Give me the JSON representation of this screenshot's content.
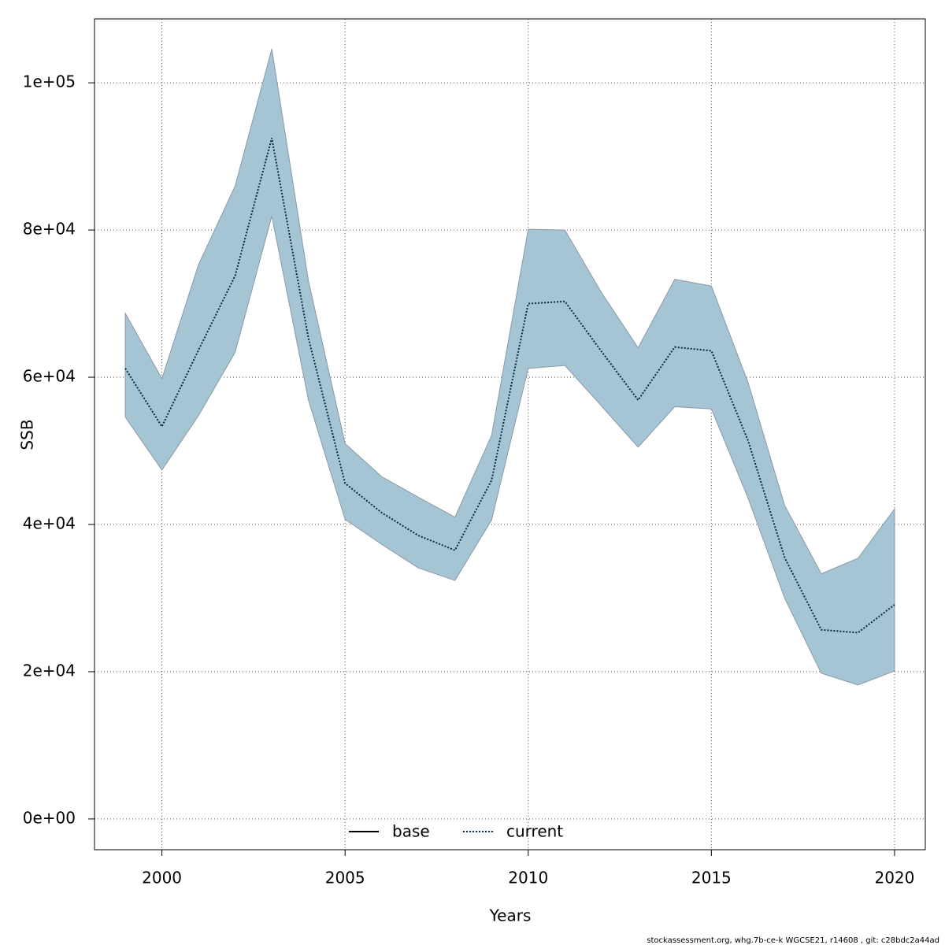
{
  "chart_data": {
    "type": "line",
    "xlabel": "Years",
    "ylabel": "SSB",
    "footnote": "stockassessment.org, whg.7b-ce-k  WGCSE21, r14608 , git: c28bdc2a44ad",
    "x": [
      1999,
      2000,
      2001,
      2002,
      2003,
      2004,
      2005,
      2006,
      2007,
      2008,
      2009,
      2010,
      2011,
      2012,
      2013,
      2014,
      2015,
      2016,
      2017,
      2018,
      2019,
      2020
    ],
    "series": [
      {
        "name": "current",
        "color": "#0a2a44",
        "band_color": "#a5c4d4",
        "values": [
          61200,
          53300,
          63700,
          73800,
          92500,
          65300,
          45600,
          41600,
          38500,
          36500,
          46000,
          70000,
          70300,
          63500,
          56900,
          64100,
          63600,
          51400,
          35500,
          25700,
          25300,
          29100
        ],
        "upper": [
          68700,
          59800,
          75300,
          86000,
          104600,
          73100,
          51000,
          46500,
          43700,
          41000,
          52100,
          80100,
          80000,
          71500,
          64000,
          73300,
          72400,
          59300,
          42600,
          33300,
          35400,
          42100
        ],
        "lower": [
          54600,
          47400,
          54800,
          63400,
          81900,
          56900,
          40700,
          37300,
          34100,
          32400,
          40600,
          61200,
          61600,
          56100,
          50500,
          56000,
          55700,
          43600,
          30000,
          19800,
          18200,
          20100
        ]
      }
    ],
    "legend": [
      {
        "name": "base",
        "color": "#000000",
        "dash": "solid"
      },
      {
        "name": "current",
        "color": "#0a2a44",
        "dash": "dotted"
      }
    ],
    "xlim": [
      1998.16,
      2020.84
    ],
    "ylim": [
      -4180,
      108680
    ],
    "xticks": [
      2000,
      2005,
      2010,
      2015,
      2020
    ],
    "yticks": [
      {
        "value": 0,
        "label": "0e+00"
      },
      {
        "value": 20000,
        "label": "2e+04"
      },
      {
        "value": 40000,
        "label": "4e+04"
      },
      {
        "value": 60000,
        "label": "6e+04"
      },
      {
        "value": 80000,
        "label": "8e+04"
      },
      {
        "value": 100000,
        "label": "1e+05"
      }
    ],
    "grid": true
  }
}
